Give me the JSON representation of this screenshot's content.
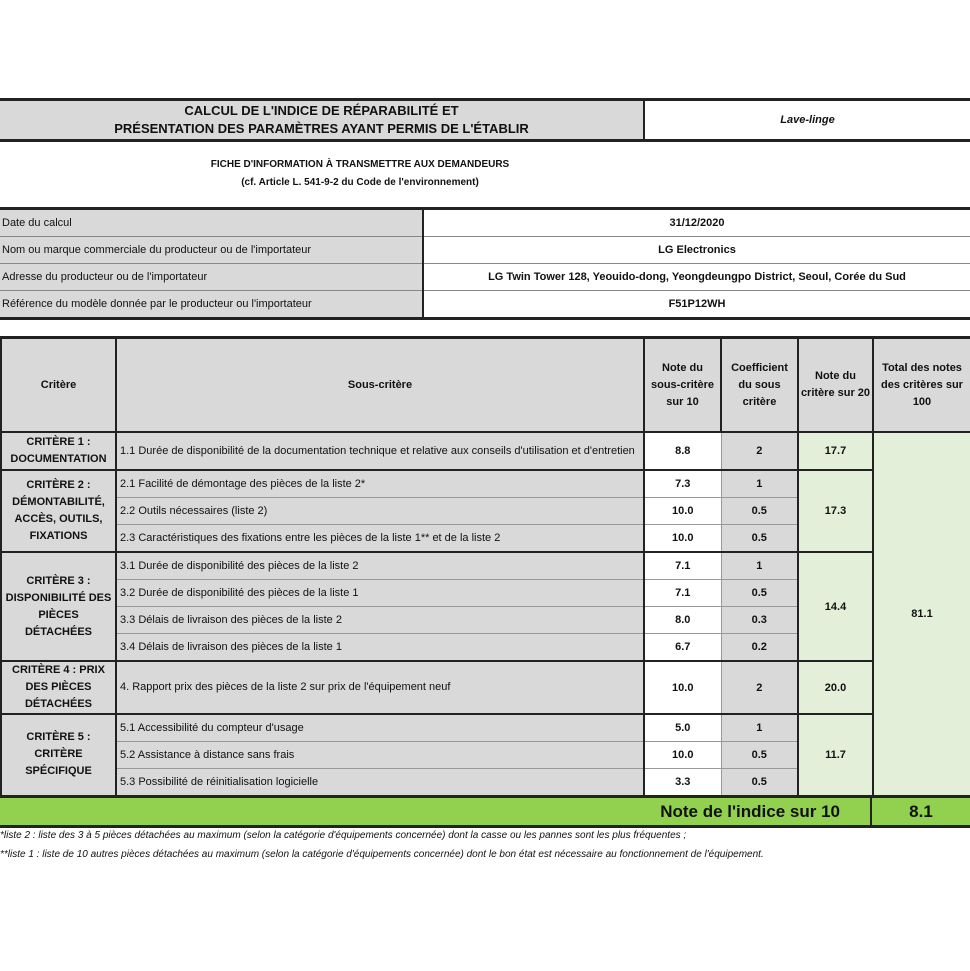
{
  "header": {
    "title_line1": "CALCUL DE L'INDICE DE RÉPARABILITÉ ET",
    "title_line2": "PRÉSENTATION DES PARAMÈTRES AYANT PERMIS DE L'ÉTABLIR",
    "product_type": "Lave-linge"
  },
  "fiche": {
    "line1": "FICHE D'INFORMATION À TRANSMETTRE AUX DEMANDEURS",
    "line2": "(cf. Article L. 541-9-2 du Code de l'environnement)"
  },
  "info": [
    {
      "label": "Date du calcul",
      "value": "31/12/2020"
    },
    {
      "label": "Nom ou marque commerciale du producteur ou de l'importateur",
      "value": "LG Electronics"
    },
    {
      "label": "Adresse du producteur ou de l'importateur",
      "value": "LG Twin Tower 128, Yeouido-dong, Yeongdeungpo District, Seoul, Corée du Sud"
    },
    {
      "label": "Référence du modèle donnée par le producteur ou l'importateur",
      "value": "F51P12WH"
    }
  ],
  "table": {
    "headers": [
      "Critère",
      "Sous-critère",
      "Note du sous-critère sur 10",
      "Coefficient du sous critère",
      "Note du critère sur 20",
      "Total des notes des critères sur 100"
    ],
    "criteria": [
      {
        "name": "CRITÈRE 1 : DOCUMENTATION",
        "score": "17.7",
        "subs": [
          {
            "label": "1.1 Durée de disponibilité de la documentation technique et relative aux conseils d'utilisation et d'entretien",
            "note": "8.8",
            "coef": "2"
          }
        ]
      },
      {
        "name": "CRITÈRE 2 : DÉMONTABILITÉ, ACCÈS, OUTILS, FIXATIONS",
        "score": "17.3",
        "subs": [
          {
            "label": "2.1 Facilité de démontage des pièces de la liste 2*",
            "note": "7.3",
            "coef": "1"
          },
          {
            "label": "2.2 Outils nécessaires (liste 2)",
            "note": "10.0",
            "coef": "0.5"
          },
          {
            "label": "2.3 Caractéristiques des fixations entre les pièces de la liste 1** et de la liste 2",
            "note": "10.0",
            "coef": "0.5"
          }
        ]
      },
      {
        "name": "CRITÈRE 3 : DISPONIBILITÉ DES PIÈCES DÉTACHÉES",
        "score": "14.4",
        "subs": [
          {
            "label": "3.1 Durée de disponibilité des pièces de la liste 2",
            "note": "7.1",
            "coef": "1"
          },
          {
            "label": "3.2 Durée de disponibilité des pièces de la liste 1",
            "note": "7.1",
            "coef": "0.5"
          },
          {
            "label": "3.3 Délais de livraison des pièces de la liste 2",
            "note": "8.0",
            "coef": "0.3"
          },
          {
            "label": "3.4 Délais de livraison des pièces de la liste 1",
            "note": "6.7",
            "coef": "0.2"
          }
        ]
      },
      {
        "name": "CRITÈRE 4 : PRIX DES PIÈCES DÉTACHÉES",
        "score": "20.0",
        "subs": [
          {
            "label": "4. Rapport prix des pièces de la liste 2 sur prix de l'équipement neuf",
            "note": "10.0",
            "coef": "2"
          }
        ]
      },
      {
        "name": "CRITÈRE 5 : CRITÈRE SPÉCIFIQUE",
        "score": "11.7",
        "subs": [
          {
            "label": "5.1 Accessibilité du compteur d'usage",
            "note": "5.0",
            "coef": "1"
          },
          {
            "label": "5.2 Assistance à distance sans frais",
            "note": "10.0",
            "coef": "0.5"
          },
          {
            "label": "5.3 Possibilité de réinitialisation logicielle",
            "note": "3.3",
            "coef": "0.5"
          }
        ]
      }
    ],
    "total": "81.1"
  },
  "index": {
    "label": "Note de l'indice sur 10",
    "value": "8.1"
  },
  "footnotes": [
    "*liste 2 : liste des 3 à 5 pièces détachées au maximum (selon la catégorie d'équipements concernée) dont la casse ou les pannes sont les plus fréquentes ;",
    "**liste 1 : liste de 10 autres pièces détachées au maximum (selon la catégorie d'équipements concernée) dont le bon état est nécessaire au fonctionnement de l'équipement."
  ],
  "colors": {
    "header_grey": "#d9d9d9",
    "light_green": "#e4efd9",
    "index_green": "#92d050"
  }
}
